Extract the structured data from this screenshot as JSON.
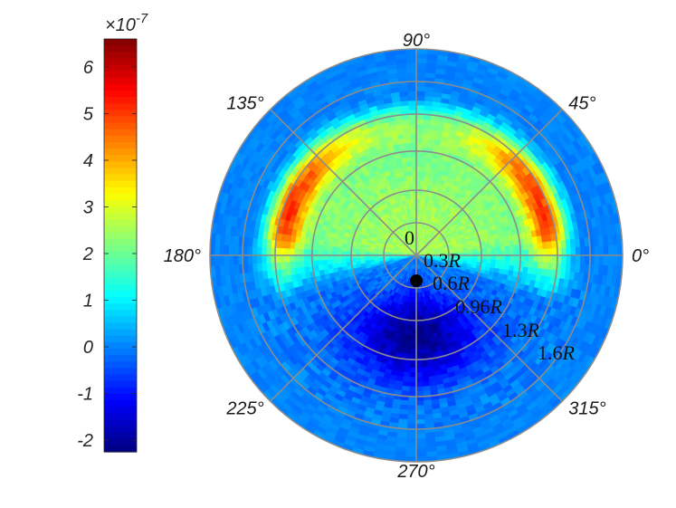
{
  "chart_data": {
    "type": "heatmap",
    "subtype": "polar",
    "colormap": "jet",
    "colorbar": {
      "exponent_label": "×10",
      "exponent": "-7",
      "ticks": [
        6,
        5,
        4,
        3,
        2,
        1,
        0,
        -1,
        -2
      ],
      "tick_labels": [
        "6",
        "5",
        "4",
        "3",
        "2",
        "1",
        "0",
        "-1",
        "-2"
      ],
      "range": [
        -2.25,
        6.6
      ]
    },
    "angular_ticks": [
      {
        "deg": 0,
        "label": "0°"
      },
      {
        "deg": 45,
        "label": "45°"
      },
      {
        "deg": 90,
        "label": "90°"
      },
      {
        "deg": 135,
        "label": "135°"
      },
      {
        "deg": 180,
        "label": "180°"
      },
      {
        "deg": 225,
        "label": "225°"
      },
      {
        "deg": 270,
        "label": "270°"
      },
      {
        "deg": 315,
        "label": "315°"
      }
    ],
    "radial_ticks": [
      {
        "r": 0,
        "label": "0"
      },
      {
        "r": 0.3,
        "label": "0.3R"
      },
      {
        "r": 0.6,
        "label": "0.6R"
      },
      {
        "r": 0.96,
        "label": "0.96R"
      },
      {
        "r": 1.3,
        "label": "1.3R"
      },
      {
        "r": 1.6,
        "label": "1.6R"
      }
    ],
    "grid": true,
    "marker": {
      "name": "center-dot",
      "color": "#000000"
    },
    "field_description": {
      "max_value": 6.5,
      "min_value": -2.2,
      "background_value": 0,
      "inner_value": 2.5,
      "lobe_angles_deg": [
        20,
        160
      ],
      "lobe_radius": 1.25,
      "negative_angle_deg": 270,
      "negative_radius": 0.75
    }
  },
  "colors": {
    "grid": "#8c8c8c",
    "text": "#262626"
  }
}
